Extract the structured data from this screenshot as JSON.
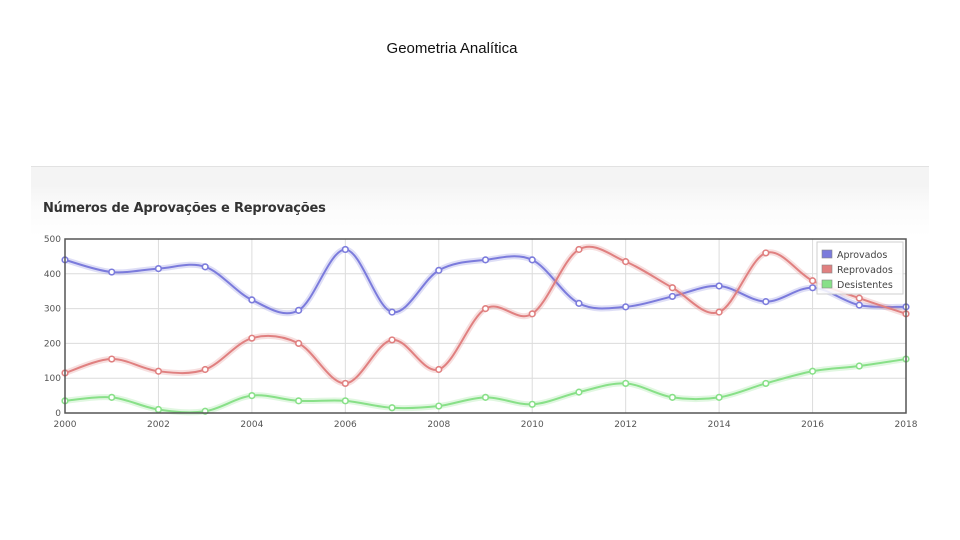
{
  "slide": {
    "title": "Geometria Analítica"
  },
  "chart_data": {
    "type": "line",
    "title": "Números de Aprovações e Reprovações",
    "xlabel": "",
    "ylabel": "",
    "x": [
      2000,
      2001,
      2002,
      2003,
      2004,
      2005,
      2006,
      2007,
      2008,
      2009,
      2010,
      2011,
      2012,
      2013,
      2014,
      2015,
      2016,
      2017,
      2018
    ],
    "x_tick_labels": [
      "2000",
      "2002",
      "2004",
      "2006",
      "2008",
      "2010",
      "2012",
      "2014",
      "2016",
      "2018"
    ],
    "y_tick_labels": [
      "0",
      "100",
      "200",
      "300",
      "400",
      "500"
    ],
    "xlim": [
      2000,
      2018
    ],
    "ylim": [
      0,
      500
    ],
    "grid": true,
    "legend_position": "top-right",
    "series": [
      {
        "name": "Aprovados",
        "color": "#7b7bdc",
        "values": [
          440,
          405,
          415,
          420,
          325,
          295,
          470,
          290,
          410,
          440,
          440,
          315,
          305,
          335,
          365,
          320,
          360,
          310,
          305
        ]
      },
      {
        "name": "Reprovados",
        "color": "#e08080",
        "values": [
          115,
          155,
          120,
          125,
          215,
          200,
          85,
          210,
          125,
          300,
          285,
          470,
          435,
          360,
          290,
          460,
          380,
          330,
          285
        ]
      },
      {
        "name": "Desistentes",
        "color": "#88e088",
        "values": [
          35,
          45,
          10,
          5,
          50,
          35,
          35,
          15,
          20,
          45,
          25,
          60,
          85,
          45,
          45,
          85,
          120,
          135,
          155
        ]
      }
    ]
  }
}
